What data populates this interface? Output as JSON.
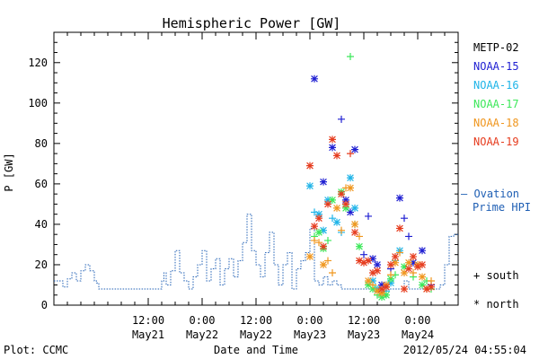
{
  "chart_data": {
    "type": "scatter",
    "title": "Hemispheric Power [GW]",
    "xlabel": "Date and Time",
    "ylabel": "P [GW]",
    "ylim": [
      0,
      135
    ],
    "yticks": [
      0,
      20,
      40,
      60,
      80,
      100,
      120
    ],
    "xlim_hours": [
      -9,
      81
    ],
    "x_ticks": [
      {
        "hour": 12,
        "time": "12:00",
        "date": "May21"
      },
      {
        "hour": 24,
        "time": "0:00",
        "date": "May22"
      },
      {
        "hour": 36,
        "time": "12:00",
        "date": "May22"
      },
      {
        "hour": 48,
        "time": "0:00",
        "date": "May23"
      },
      {
        "hour": 60,
        "time": "12:00",
        "date": "May23"
      },
      {
        "hour": 72,
        "time": "0:00",
        "date": "May24"
      }
    ],
    "legend": [
      {
        "name": "METP-02",
        "color": "#000000"
      },
      {
        "name": "NOAA-15",
        "color": "#1f1fd2"
      },
      {
        "name": "NOAA-16",
        "color": "#1fb4e8"
      },
      {
        "name": "NOAA-17",
        "color": "#3ce85a"
      },
      {
        "name": "NOAA-18",
        "color": "#f0961e"
      },
      {
        "name": "NOAA-19",
        "color": "#e63c1e"
      }
    ],
    "ovation": {
      "label_line1": "– Ovation",
      "label_line2": "Prime HPI",
      "color": "#1f5fb4",
      "steps": [
        [
          -9,
          12
        ],
        [
          -7,
          9
        ],
        [
          -6,
          13
        ],
        [
          -5,
          16
        ],
        [
          -4,
          12
        ],
        [
          -3,
          17
        ],
        [
          -2,
          20
        ],
        [
          -1,
          17
        ],
        [
          0,
          12
        ],
        [
          0.5,
          11
        ],
        [
          1,
          8
        ],
        [
          11,
          8
        ],
        [
          15,
          12
        ],
        [
          15.5,
          16
        ],
        [
          16,
          10
        ],
        [
          17,
          17
        ],
        [
          18,
          27
        ],
        [
          19,
          16
        ],
        [
          20,
          12
        ],
        [
          21,
          8
        ],
        [
          22,
          14
        ],
        [
          23,
          20
        ],
        [
          24,
          27
        ],
        [
          25,
          12
        ],
        [
          26,
          18
        ],
        [
          27,
          23
        ],
        [
          28,
          10
        ],
        [
          29,
          18
        ],
        [
          30,
          23
        ],
        [
          31,
          14
        ],
        [
          32,
          22
        ],
        [
          33,
          31
        ],
        [
          34,
          45
        ],
        [
          35,
          27
        ],
        [
          36,
          20
        ],
        [
          37,
          14
        ],
        [
          38,
          26
        ],
        [
          39,
          36
        ],
        [
          40,
          20
        ],
        [
          41,
          10
        ],
        [
          42,
          20
        ],
        [
          43,
          26
        ],
        [
          44,
          8
        ],
        [
          45,
          18
        ],
        [
          46,
          22
        ],
        [
          47,
          26
        ],
        [
          48,
          38
        ],
        [
          49,
          12
        ],
        [
          50,
          10
        ],
        [
          51,
          14
        ],
        [
          52,
          10
        ],
        [
          53,
          12
        ],
        [
          54,
          10
        ],
        [
          55,
          8
        ],
        [
          63,
          4
        ],
        [
          65,
          8
        ],
        [
          69,
          12
        ],
        [
          70,
          8
        ],
        [
          77,
          10
        ],
        [
          78,
          20
        ],
        [
          79,
          34
        ],
        [
          80,
          35
        ],
        [
          81,
          35
        ]
      ]
    },
    "series": [
      {
        "name": "NOAA-15",
        "color": "#1f1fd2",
        "points": [
          [
            49,
            112,
            "n"
          ],
          [
            51,
            61,
            "n"
          ],
          [
            53,
            78,
            "n"
          ],
          [
            55,
            92,
            "s"
          ],
          [
            56,
            52,
            "n"
          ],
          [
            57,
            46,
            "n"
          ],
          [
            58,
            77,
            "n"
          ],
          [
            60,
            25,
            "s"
          ],
          [
            61,
            44,
            "s"
          ],
          [
            62,
            23,
            "n"
          ],
          [
            63,
            20,
            "n"
          ],
          [
            64,
            10,
            "n"
          ],
          [
            66,
            18,
            "s"
          ],
          [
            68,
            53,
            "n"
          ],
          [
            69,
            43,
            "s"
          ],
          [
            70,
            34,
            "s"
          ],
          [
            71,
            21,
            "n"
          ],
          [
            73,
            27,
            "n"
          ],
          [
            75,
            10,
            "s"
          ]
        ]
      },
      {
        "name": "NOAA-16",
        "color": "#1fb4e8",
        "points": [
          [
            48,
            59,
            "n"
          ],
          [
            49,
            46,
            "s"
          ],
          [
            50,
            45,
            "n"
          ],
          [
            51,
            37,
            "n"
          ],
          [
            52,
            52,
            "n"
          ],
          [
            53,
            43,
            "s"
          ],
          [
            54,
            41,
            "n"
          ],
          [
            55,
            36,
            "s"
          ],
          [
            57,
            63,
            "n"
          ],
          [
            58,
            48,
            "n"
          ],
          [
            62,
            12,
            "n"
          ],
          [
            63,
            8,
            "n"
          ],
          [
            64,
            6,
            "n"
          ],
          [
            65,
            7,
            "s"
          ],
          [
            66,
            11,
            "n"
          ],
          [
            67,
            22,
            "s"
          ],
          [
            68,
            27,
            "n"
          ]
        ]
      },
      {
        "name": "NOAA-17",
        "color": "#3ce85a",
        "points": [
          [
            49,
            34,
            "s"
          ],
          [
            50,
            36,
            "n"
          ],
          [
            51,
            28,
            "n"
          ],
          [
            52,
            32,
            "s"
          ],
          [
            53,
            52,
            "n"
          ],
          [
            55,
            56,
            "n"
          ],
          [
            56,
            48,
            "n"
          ],
          [
            57,
            123,
            "s"
          ],
          [
            58,
            40,
            "s"
          ],
          [
            59,
            29,
            "n"
          ],
          [
            61,
            10,
            "n"
          ],
          [
            62,
            8,
            "n"
          ],
          [
            63,
            5,
            "s"
          ],
          [
            64,
            4,
            "n"
          ],
          [
            65,
            5,
            "n"
          ],
          [
            66,
            13,
            "n"
          ],
          [
            67,
            15,
            "s"
          ],
          [
            69,
            19,
            "n"
          ],
          [
            71,
            14,
            "s"
          ],
          [
            73,
            10,
            "n"
          ],
          [
            74,
            12,
            "s"
          ],
          [
            75,
            8,
            "s"
          ]
        ]
      },
      {
        "name": "NOAA-18",
        "color": "#f0961e",
        "points": [
          [
            48,
            24,
            "n"
          ],
          [
            49,
            32,
            "s"
          ],
          [
            50,
            31,
            "s"
          ],
          [
            51,
            20,
            "n"
          ],
          [
            52,
            22,
            "s"
          ],
          [
            53,
            16,
            "s"
          ],
          [
            54,
            48,
            "n"
          ],
          [
            55,
            37,
            "s"
          ],
          [
            56,
            58,
            "s"
          ],
          [
            57,
            58,
            "n"
          ],
          [
            58,
            40,
            "n"
          ],
          [
            59,
            34,
            "s"
          ],
          [
            61,
            12,
            "n"
          ],
          [
            62,
            10,
            "s"
          ],
          [
            63,
            7,
            "n"
          ],
          [
            64,
            6,
            "n"
          ],
          [
            65,
            10,
            "n"
          ],
          [
            66,
            15,
            "s"
          ],
          [
            67,
            21,
            "n"
          ],
          [
            68,
            26,
            "s"
          ],
          [
            69,
            16,
            "n"
          ],
          [
            70,
            21,
            "n"
          ],
          [
            71,
            16,
            "s"
          ],
          [
            72,
            20,
            "n"
          ],
          [
            73,
            14,
            "n"
          ],
          [
            74,
            8,
            "n"
          ],
          [
            75,
            12,
            "s"
          ]
        ]
      },
      {
        "name": "NOAA-19",
        "color": "#e63c1e",
        "points": [
          [
            48,
            69,
            "n"
          ],
          [
            49,
            39,
            "n"
          ],
          [
            50,
            43,
            "n"
          ],
          [
            51,
            29,
            "n"
          ],
          [
            52,
            50,
            "n"
          ],
          [
            53,
            82,
            "n"
          ],
          [
            54,
            74,
            "n"
          ],
          [
            55,
            55,
            "n"
          ],
          [
            56,
            50,
            "n"
          ],
          [
            57,
            75,
            "s"
          ],
          [
            58,
            36,
            "n"
          ],
          [
            59,
            22,
            "n"
          ],
          [
            60,
            21,
            "n"
          ],
          [
            61,
            22,
            "n"
          ],
          [
            62,
            16,
            "n"
          ],
          [
            63,
            17,
            "n"
          ],
          [
            64,
            8,
            "n"
          ],
          [
            65,
            9,
            "n"
          ],
          [
            66,
            20,
            "n"
          ],
          [
            67,
            24,
            "n"
          ],
          [
            68,
            38,
            "n"
          ],
          [
            69,
            8,
            "n"
          ],
          [
            70,
            18,
            "n"
          ],
          [
            71,
            24,
            "n"
          ],
          [
            72,
            19,
            "n"
          ],
          [
            73,
            20,
            "n"
          ],
          [
            74,
            8,
            "n"
          ],
          [
            75,
            9,
            "n"
          ]
        ]
      }
    ],
    "marker_legend": {
      "south": "+ south",
      "north": "* north"
    }
  },
  "footer": {
    "left": "Plot: CCMC",
    "right": "2012/05/24 04:55:04"
  }
}
